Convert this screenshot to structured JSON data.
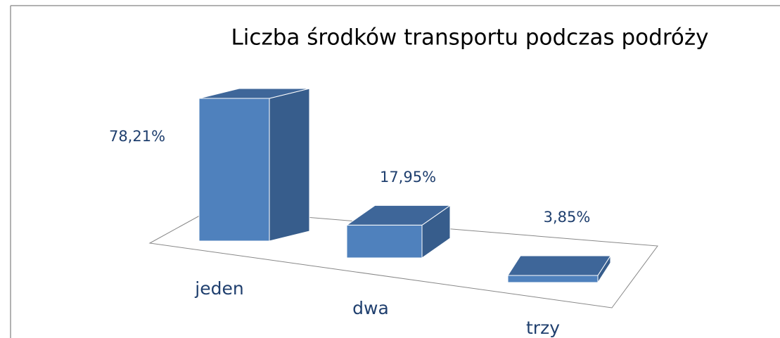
{
  "chart_data": {
    "type": "bar3d",
    "title": "Liczba środków transportu podczas podróży",
    "categories": [
      "jeden",
      "dwa",
      "trzy"
    ],
    "values": [
      78.21,
      17.95,
      3.85
    ],
    "value_labels": [
      "78,21%",
      "17,95%",
      "3,85%"
    ],
    "color": "#4f81bd"
  }
}
